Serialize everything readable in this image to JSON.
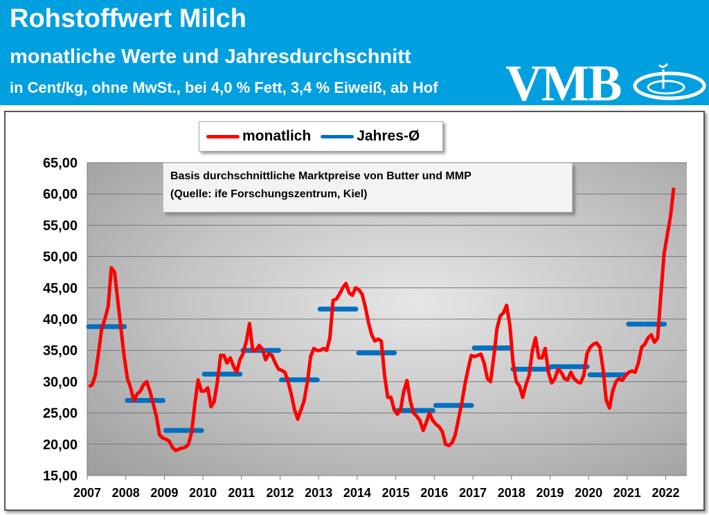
{
  "header": {
    "title": "Rohstoffwert Milch",
    "subtitle": "monatliche Werte und Jahresdurchschnitt",
    "unit_line": "in Cent/kg, ohne MwSt., bei 4,0 % Fett, 3,4 % Eiweiß, ab Hof",
    "logo_text": "VMB"
  },
  "colors": {
    "header_bg": "#009fe0",
    "monthly": "#ff0000",
    "annual": "#0070c0"
  },
  "note": {
    "line1": "Basis durchschnittliche Marktpreise von Butter und MMP",
    "line2": "(Quelle: ife Forschungszentrum, Kiel)"
  },
  "chart_data": {
    "type": "line",
    "ylim": [
      15,
      65
    ],
    "yticks": [
      "15,00",
      "20,00",
      "25,00",
      "30,00",
      "35,00",
      "40,00",
      "45,00",
      "50,00",
      "55,00",
      "60,00",
      "65,00"
    ],
    "xticks": [
      "2007",
      "2008",
      "2009",
      "2010",
      "2011",
      "2012",
      "2013",
      "2014",
      "2015",
      "2016",
      "2017",
      "2018",
      "2019",
      "2020",
      "2021",
      "2022"
    ],
    "grid": "horizontal",
    "legend_position": "top",
    "series": [
      {
        "name": "monatlich",
        "color": "#ff0000",
        "start": "2007-01",
        "values": [
          29.2,
          29.5,
          31,
          34.5,
          38.5,
          40,
          42,
          48.2,
          47.5,
          43,
          38.5,
          34,
          30.5,
          29,
          27,
          28,
          28.5,
          29.5,
          30,
          28.5,
          26.5,
          24.5,
          21.5,
          21,
          20.8,
          20.5,
          19.5,
          19,
          19.2,
          19.4,
          19.5,
          20,
          22,
          26.5,
          30.3,
          28.5,
          28.5,
          29,
          26,
          26.8,
          30,
          34.2,
          34.2,
          33,
          33.8,
          32.5,
          31.5,
          33.5,
          34.5,
          36.5,
          39.3,
          35,
          35,
          35.8,
          35.2,
          33.5,
          34.5,
          34.2,
          33,
          32,
          31.8,
          31.5,
          30,
          28,
          25.5,
          24,
          25.5,
          27,
          30,
          34,
          35.3,
          35,
          35,
          35.3,
          35,
          37,
          43,
          43.2,
          44,
          45,
          45.7,
          44.2,
          43.8,
          45,
          44.7,
          44,
          42,
          39.5,
          37.5,
          36.5,
          36.8,
          36.5,
          31,
          27.5,
          27.5,
          25.5,
          24.8,
          25.5,
          28.5,
          30.2,
          27,
          25,
          24.5,
          23.8,
          22.2,
          23.5,
          25,
          23.8,
          23.2,
          22.8,
          22,
          20,
          19.8,
          20.2,
          21.5,
          24,
          26.5,
          29.5,
          32,
          34.2,
          34,
          34.2,
          34.4,
          33,
          30.5,
          30,
          34,
          38.5,
          40.5,
          41,
          42.2,
          39,
          33,
          30,
          29.3,
          27.5,
          29.5,
          31,
          35,
          37,
          33.8,
          33.8,
          35.3,
          31.5,
          29.8,
          30.5,
          32,
          31.5,
          30.5,
          30.3,
          31.5,
          30.5,
          30,
          29.8,
          31,
          34.5,
          35.5,
          36,
          36.2,
          35.5,
          32,
          27,
          25.8,
          28.5,
          30,
          30.5,
          30.2,
          31,
          31.5,
          31.7,
          31.5,
          33,
          35.5,
          36,
          37,
          37.5,
          36.3,
          37,
          44,
          50.5,
          53.5,
          56.5,
          61
        ]
      },
      {
        "name": "Jahres-Ø",
        "color": "#0070c0",
        "years": [
          2007,
          2008,
          2009,
          2010,
          2011,
          2012,
          2013,
          2014,
          2015,
          2016,
          2017,
          2018,
          2019,
          2020,
          2021
        ],
        "values": [
          38.8,
          27.0,
          22.2,
          31.2,
          35.0,
          30.3,
          41.6,
          34.6,
          25.4,
          26.2,
          35.4,
          32.0,
          32.4,
          31.1,
          39.2
        ]
      }
    ]
  }
}
